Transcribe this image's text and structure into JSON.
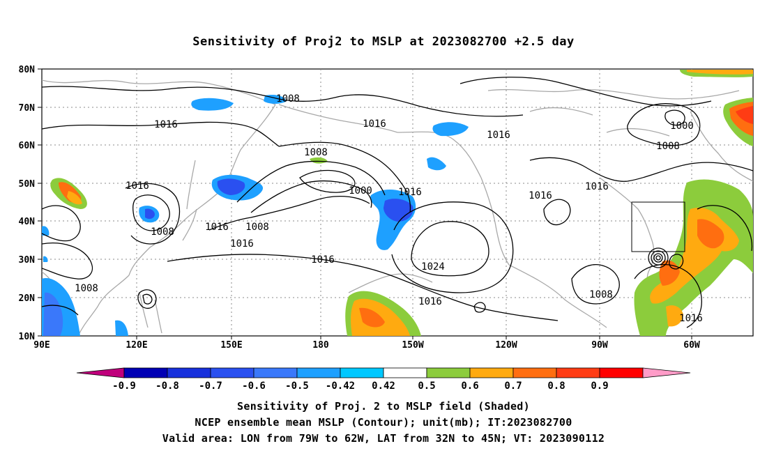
{
  "title": "Sensitivity of Proj2 to MSLP at 2023082700 +2.5 day",
  "lat_labels": [
    "80N",
    "70N",
    "60N",
    "50N",
    "40N",
    "30N",
    "20N",
    "10N"
  ],
  "lon_labels": [
    "90E",
    "120E",
    "150E",
    "180",
    "150W",
    "120W",
    "90W",
    "60W"
  ],
  "contour_labels": [
    "1008",
    "1016",
    "1016",
    "1016",
    "1000",
    "1008",
    "1008",
    "1000",
    "1016",
    "1016",
    "1016",
    "1016",
    "1008",
    "1008",
    "1016",
    "1016",
    "1024",
    "1008",
    "1016",
    "1008",
    "1016"
  ],
  "colorbar": {
    "labels": [
      "-0.9",
      "-0.8",
      "-0.7",
      "-0.6",
      "-0.5",
      "-0.42",
      "0.42",
      "0.5",
      "0.6",
      "0.7",
      "0.8",
      "0.9"
    ],
    "colors": [
      "#c0007c",
      "#0000b4",
      "#1730dc",
      "#2a50f0",
      "#3a78fa",
      "#1ea0ff",
      "#00c8ff",
      "#ffffff",
      "#8ccc3c",
      "#ffaa10",
      "#ff6e10",
      "#ff3c14",
      "#ff0000",
      "#ff9cc8"
    ]
  },
  "captions": {
    "line1": "Sensitivity of Proj. 2 to MSLP field (Shaded)",
    "line2": "NCEP ensemble mean MSLP (Contour); unit(mb); IT:2023082700",
    "line3": "Valid area: LON from 79W to 62W, LAT from 32N to 45N; VT: 2023090112"
  }
}
